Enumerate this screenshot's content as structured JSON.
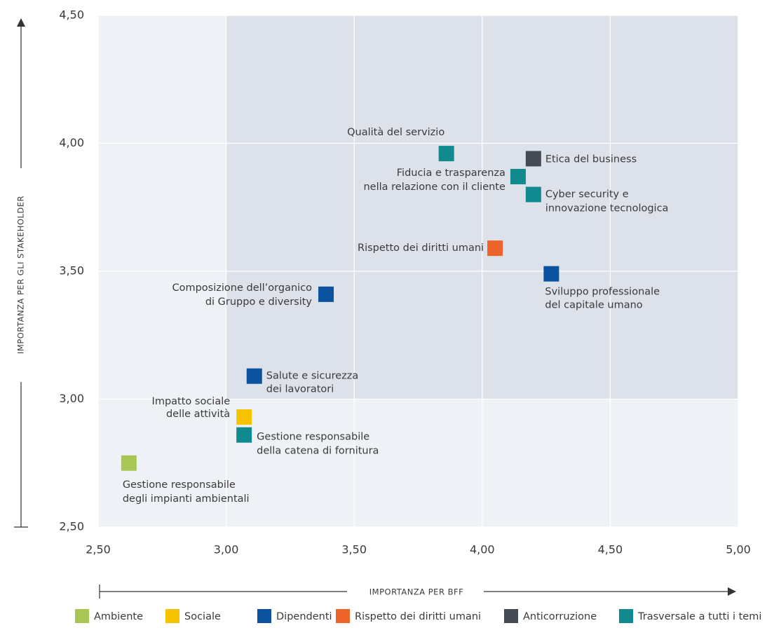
{
  "chart_data": {
    "type": "scatter",
    "x_label": "IMPORTANZA PER BFF",
    "y_label": "IMPORTANZA PER GLI STAKEHOLDER",
    "xlim": [
      2.5,
      5.0
    ],
    "ylim": [
      2.5,
      4.5
    ],
    "xticks": [
      {
        "value": 2.5,
        "label": "2,50"
      },
      {
        "value": 3.0,
        "label": "3,00"
      },
      {
        "value": 3.5,
        "label": "3,50"
      },
      {
        "value": 4.0,
        "label": "4,00"
      },
      {
        "value": 4.5,
        "label": "4,50"
      },
      {
        "value": 5.0,
        "label": "5,00"
      }
    ],
    "yticks": [
      {
        "value": 2.5,
        "label": "2,50"
      },
      {
        "value": 3.0,
        "label": "3,00"
      },
      {
        "value": 3.5,
        "label": "3,50"
      },
      {
        "value": 4.0,
        "label": "4,00"
      },
      {
        "value": 4.5,
        "label": "4,50"
      }
    ],
    "grid": true,
    "legend": "bottom",
    "series": [
      {
        "name": "Ambiente",
        "color": "#a8c656",
        "x": [
          2.62
        ],
        "values": [
          2.75
        ],
        "labels": [
          [
            "Gestione responsabile",
            "degli impianti ambientali"
          ]
        ]
      },
      {
        "name": "Sociale",
        "color": "#f7c200",
        "x": [
          3.07
        ],
        "values": [
          2.93
        ],
        "labels": [
          [
            "Impatto sociale",
            "delle attività"
          ]
        ]
      },
      {
        "name": "Dipendenti",
        "color": "#0b539e",
        "x": [
          4.27,
          3.39,
          3.11
        ],
        "values": [
          3.49,
          3.41,
          3.09
        ],
        "labels": [
          [
            "Sviluppo professionale",
            "del capitale umano"
          ],
          [
            "Composizione dell’organico",
            "di Gruppo e diversity"
          ],
          [
            "Salute e sicurezza",
            "dei lavoratori"
          ]
        ]
      },
      {
        "name": "Rispetto dei diritti umani",
        "color": "#ec6429",
        "x": [
          4.05
        ],
        "values": [
          3.59
        ],
        "labels": [
          [
            "Rispetto dei diritti umani"
          ]
        ]
      },
      {
        "name": "Anticorruzione",
        "color": "#454b54",
        "x": [
          4.2
        ],
        "values": [
          3.94
        ],
        "labels": [
          [
            "Etica del business"
          ]
        ]
      },
      {
        "name": "Trasversale a tutti i temi",
        "color": "#108a8e",
        "x": [
          3.86,
          4.14,
          4.2,
          3.07
        ],
        "values": [
          3.96,
          3.87,
          3.8,
          2.86
        ],
        "labels": [
          [
            "Qualità del servizio"
          ],
          [
            "Fiducia e trasparenza",
            "nella relazione con il cliente"
          ],
          [
            "Cyber security e",
            "innovazione tecnologica"
          ],
          [
            "Gestione responsabile",
            "della catena di fornitura"
          ]
        ]
      }
    ]
  }
}
